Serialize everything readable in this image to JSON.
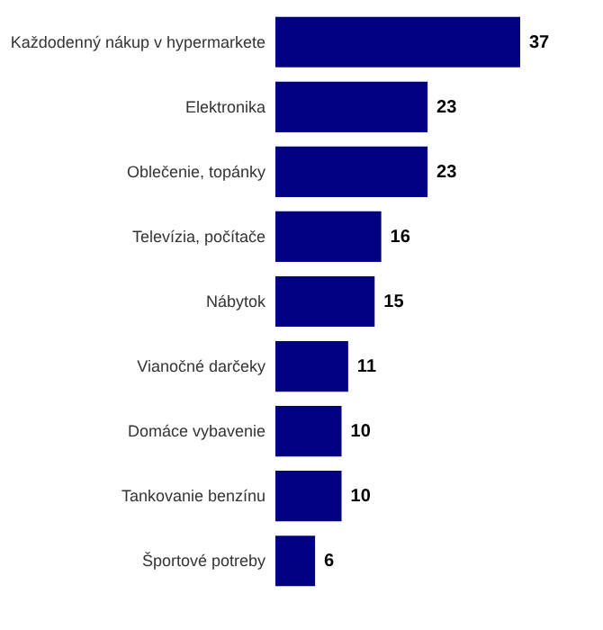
{
  "chart_data": {
    "type": "bar",
    "orientation": "horizontal",
    "categories": [
      "Každodenný nákup v hypermarkete",
      "Elektronika",
      "Oblečenie, topánky",
      "Televízia, počítače",
      "Nábytok",
      "Vianočné darčeky",
      "Domáce vybavenie",
      "Tankovanie benzínu",
      "Športové potreby"
    ],
    "values": [
      37,
      23,
      23,
      16,
      15,
      11,
      10,
      10,
      6
    ],
    "color": "#000080",
    "data_labels": true
  }
}
